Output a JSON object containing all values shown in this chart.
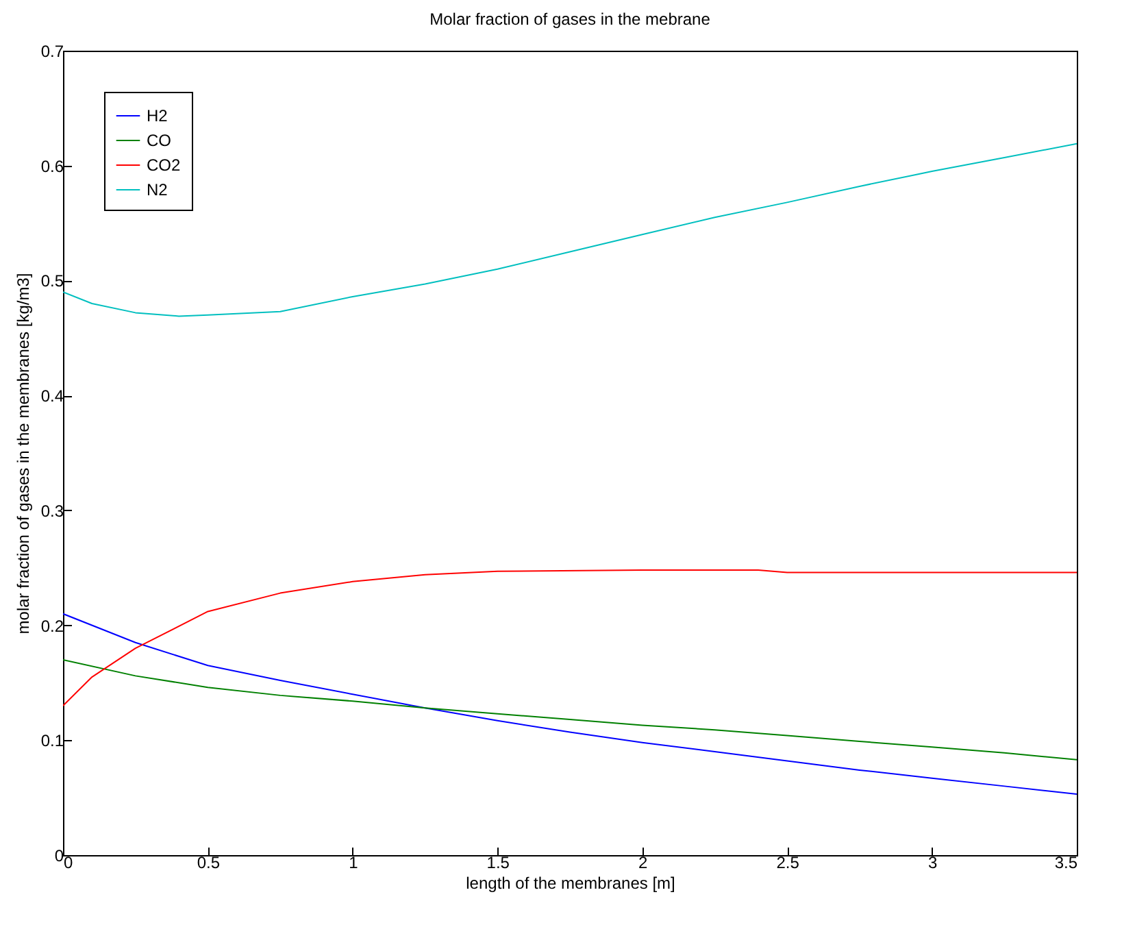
{
  "chart_data": {
    "type": "line",
    "title": "Molar fraction of gases in the mebrane",
    "xlabel": "length of the membranes [m]",
    "ylabel": "molar fraction of gases in the membranes [kg/m3]",
    "xlim": [
      0,
      3.5
    ],
    "xticks": [
      0,
      0.5,
      1,
      1.5,
      2,
      2.5,
      3,
      3.5
    ],
    "ylim": [
      0,
      0.7
    ],
    "yticks": [
      0,
      0.1,
      0.2,
      0.3,
      0.4,
      0.5,
      0.6,
      0.7
    ],
    "grid": false,
    "legend": "top left",
    "marker": "none",
    "line_style": "solid",
    "series": [
      {
        "name": "H2",
        "color": "#0000ff",
        "x": [
          0,
          0.25,
          0.5,
          0.75,
          1,
          1.25,
          1.5,
          1.75,
          2,
          2.25,
          2.5,
          2.75,
          3,
          3.25,
          3.5
        ],
        "values": [
          0.21,
          0.185,
          0.165,
          0.152,
          0.14,
          0.128,
          0.117,
          0.107,
          0.098,
          0.09,
          0.082,
          0.074,
          0.067,
          0.06,
          0.053
        ]
      },
      {
        "name": "CO",
        "color": "#008000",
        "x": [
          0,
          0.25,
          0.5,
          0.75,
          1,
          1.25,
          1.5,
          1.75,
          2,
          2.25,
          2.5,
          2.75,
          3,
          3.25,
          3.5
        ],
        "values": [
          0.17,
          0.156,
          0.146,
          0.139,
          0.134,
          0.128,
          0.123,
          0.118,
          0.113,
          0.109,
          0.104,
          0.099,
          0.094,
          0.089,
          0.083
        ]
      },
      {
        "name": "CO2",
        "color": "#ff0000",
        "x": [
          0,
          0.1,
          0.25,
          0.5,
          0.75,
          1,
          1.25,
          1.5,
          2,
          2.4,
          2.5,
          3,
          3.5
        ],
        "values": [
          0.13,
          0.155,
          0.18,
          0.212,
          0.228,
          0.238,
          0.244,
          0.247,
          0.248,
          0.248,
          0.246,
          0.246,
          0.246
        ]
      },
      {
        "name": "N2",
        "color": "#00bfbf",
        "x": [
          0,
          0.1,
          0.25,
          0.4,
          0.5,
          0.75,
          1,
          1.25,
          1.5,
          1.75,
          2,
          2.25,
          2.5,
          2.75,
          3,
          3.25,
          3.5
        ],
        "values": [
          0.49,
          0.48,
          0.472,
          0.469,
          0.47,
          0.473,
          0.486,
          0.497,
          0.51,
          0.525,
          0.54,
          0.555,
          0.568,
          0.582,
          0.595,
          0.607,
          0.619
        ]
      }
    ]
  }
}
